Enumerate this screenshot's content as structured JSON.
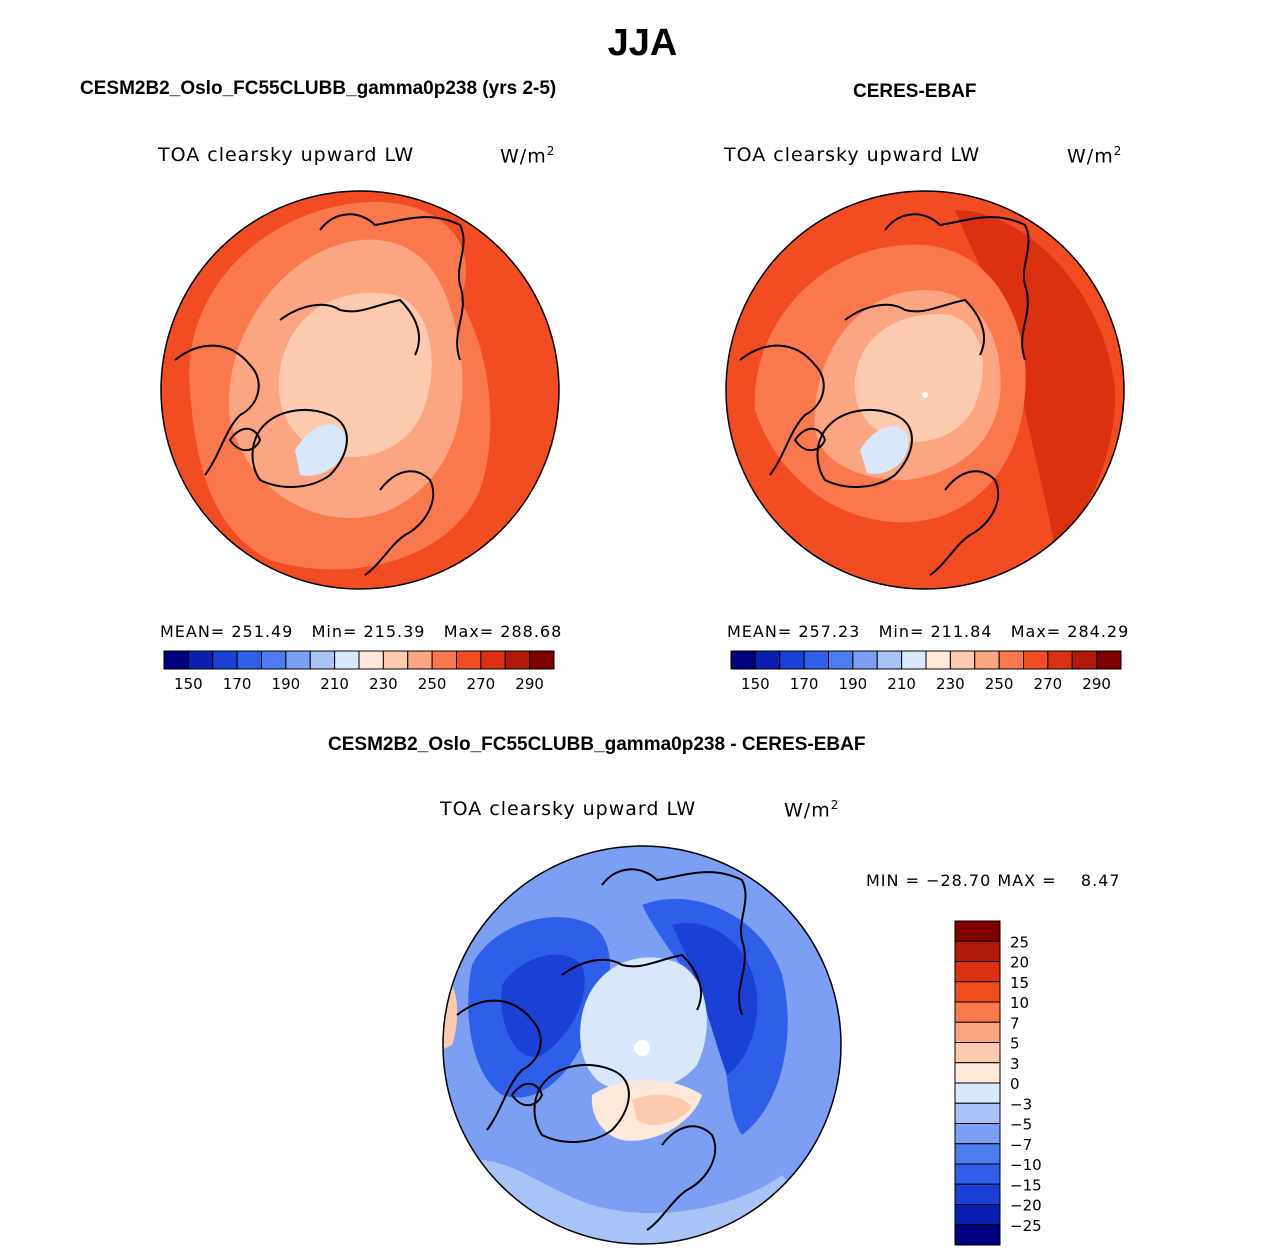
{
  "season": "JJA",
  "panels": [
    {
      "id": "model",
      "case_title": "CESM2B2_Oslo_FC55CLUBB_gamma0p238 (yrs 2-5)",
      "variable": "TOA clearsky upward LW",
      "units": "W/m",
      "units_exp": "2",
      "mean_label": "MEAN=",
      "mean": "251.49",
      "min_label": "Min=",
      "min": "215.39",
      "max_label": "Max=",
      "max": "288.68"
    },
    {
      "id": "obs",
      "case_title": "CERES-EBAF",
      "variable": "TOA clearsky upward LW",
      "units": "W/m",
      "units_exp": "2",
      "mean_label": "MEAN=",
      "mean": "257.23",
      "min_label": "Min=",
      "min": "211.84",
      "max_label": "Max=",
      "max": "284.29"
    }
  ],
  "difference": {
    "title": "CESM2B2_Oslo_FC55CLUBB_gamma0p238 - CERES-EBAF",
    "variable": "TOA clearsky upward LW",
    "units": "W/m",
    "units_exp": "2",
    "minmax_text": "MIN = −28.70 MAX =    8.47"
  },
  "chart_data": [
    {
      "type": "heatmap",
      "title": "CESM2B2_Oslo_FC55CLUBB_gamma0p238 (yrs 2-5)",
      "projection": "north polar stereographic",
      "variable": "TOA clearsky upward LW",
      "units": "W/m2",
      "mean": 251.49,
      "min": 215.39,
      "max": 288.68,
      "colorbar_levels": [
        150,
        160,
        170,
        180,
        190,
        200,
        210,
        220,
        230,
        240,
        250,
        260,
        270,
        280,
        290
      ],
      "colorbar_tick_labels": [
        "150",
        "170",
        "190",
        "210",
        "230",
        "250",
        "270",
        "290"
      ],
      "colorbar_colors": [
        "#00007f",
        "#0a1fb0",
        "#1a40d6",
        "#2f5ee8",
        "#4d7cf0",
        "#7c9ff4",
        "#a9c3f7",
        "#d8e7fb",
        "#fde8da",
        "#fccaae",
        "#fba582",
        "#f9784d",
        "#f24c22",
        "#dc3110",
        "#b1190a",
        "#7f0000"
      ]
    },
    {
      "type": "heatmap",
      "title": "CERES-EBAF",
      "projection": "north polar stereographic",
      "variable": "TOA clearsky upward LW",
      "units": "W/m2",
      "mean": 257.23,
      "min": 211.84,
      "max": 284.29,
      "colorbar_levels": [
        150,
        160,
        170,
        180,
        190,
        200,
        210,
        220,
        230,
        240,
        250,
        260,
        270,
        280,
        290
      ],
      "colorbar_tick_labels": [
        "150",
        "170",
        "190",
        "210",
        "230",
        "250",
        "270",
        "290"
      ],
      "colorbar_colors": [
        "#00007f",
        "#0a1fb0",
        "#1a40d6",
        "#2f5ee8",
        "#4d7cf0",
        "#7c9ff4",
        "#a9c3f7",
        "#d8e7fb",
        "#fde8da",
        "#fccaae",
        "#fba582",
        "#f9784d",
        "#f24c22",
        "#dc3110",
        "#b1190a",
        "#7f0000"
      ]
    },
    {
      "type": "heatmap",
      "title": "CESM2B2_Oslo_FC55CLUBB_gamma0p238 - CERES-EBAF",
      "projection": "north polar stereographic",
      "variable": "TOA clearsky upward LW",
      "units": "W/m2",
      "min": -28.7,
      "max": 8.47,
      "colorbar_tick_labels": [
        "25",
        "20",
        "15",
        "10",
        "7",
        "5",
        "3",
        "0",
        "−3",
        "−5",
        "−7",
        "−10",
        "−15",
        "−20",
        "−25"
      ],
      "colorbar_colors": [
        "#7f0000",
        "#b1190a",
        "#dc3110",
        "#f24c22",
        "#f9784d",
        "#fba582",
        "#fccaae",
        "#fde8da",
        "#d8e7fb",
        "#a9c3f7",
        "#7c9ff4",
        "#4d7cf0",
        "#2f5ee8",
        "#1a40d6",
        "#0a1fb0",
        "#00007f"
      ]
    }
  ]
}
